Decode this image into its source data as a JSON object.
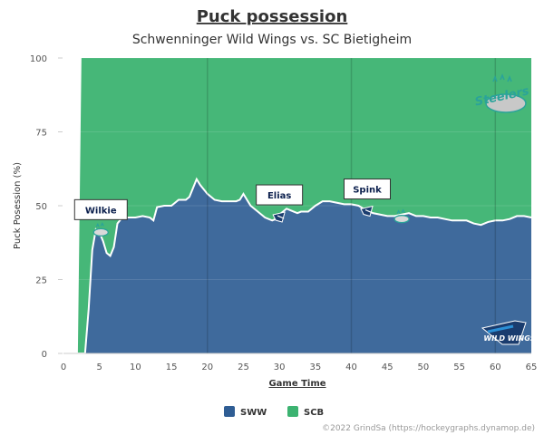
{
  "chart_data": {
    "type": "area",
    "title": "Puck possession",
    "subtitle": "Schwenninger Wild Wings vs. SC Bietigheim",
    "xlabel": "Game Time",
    "ylabel": "Puck Posession (%)",
    "xlim": [
      0,
      65
    ],
    "ylim": [
      0,
      100
    ],
    "x_ticks": [
      0,
      5,
      10,
      15,
      20,
      25,
      30,
      35,
      40,
      45,
      50,
      55,
      60,
      65
    ],
    "y_ticks": [
      0,
      25,
      50,
      75,
      100
    ],
    "grid": true,
    "legend_position": "bottom",
    "stacked_percent": true,
    "period_lines": [
      20,
      40,
      60
    ],
    "series": [
      {
        "name": "SWW",
        "color": "#2f5d94",
        "x": [
          1.3,
          2.0,
          3.0,
          3.5,
          4.0,
          4.5,
          5.0,
          5.5,
          6.0,
          6.5,
          7.0,
          7.5,
          8.0,
          9.0,
          10.0,
          11.0,
          12.0,
          12.5,
          13.0,
          14.0,
          15.0,
          16.0,
          17.0,
          17.5,
          18.0,
          18.5,
          19.0,
          20.0,
          21.0,
          22.0,
          23.0,
          24.0,
          24.5,
          25.0,
          25.5,
          26.0,
          27.0,
          28.0,
          29.0,
          29.5,
          30.0,
          30.5,
          31.0,
          31.5,
          32.0,
          32.5,
          33.0,
          34.0,
          35.0,
          36.0,
          37.0,
          38.0,
          39.0,
          40.0,
          41.0,
          42.0,
          43.0,
          44.0,
          45.0,
          46.0,
          47.0,
          48.0,
          49.0,
          50.0,
          51.0,
          52.0,
          53.0,
          54.0,
          55.0,
          56.0,
          57.0,
          58.0,
          59.0,
          60.0,
          61.0,
          62.0,
          63.0,
          64.0,
          65.0
        ],
        "values": [
          0,
          0,
          0,
          15,
          35,
          42,
          41,
          38,
          34,
          33,
          36,
          44,
          45.5,
          46,
          46,
          46.5,
          46,
          45,
          49.5,
          50,
          50,
          52,
          52,
          53,
          56,
          59,
          57,
          54,
          52,
          51.5,
          51.5,
          51.5,
          52,
          54,
          52,
          50,
          48,
          46,
          45,
          45.5,
          47,
          48,
          49,
          48.5,
          48,
          47.5,
          48,
          48,
          50,
          51.5,
          51.5,
          51,
          50.5,
          50.5,
          50,
          48.5,
          47.5,
          47,
          46.5,
          46.5,
          47,
          47.5,
          46.5,
          46.5,
          46,
          46,
          45.5,
          45,
          45,
          45,
          44,
          43.5,
          44.5,
          45,
          45,
          45.5,
          46.5,
          46.5,
          46
        ]
      },
      {
        "name": "SCB",
        "color": "#3cb371",
        "note": "complement of SWW up to 100% after puck drop"
      }
    ],
    "annotations": [
      {
        "label": "Wilkie",
        "x": 5.2,
        "y": 41,
        "team": "SCB"
      },
      {
        "label": "Elias",
        "x": 30.0,
        "y": 46,
        "team": "SWW"
      },
      {
        "label": "Spink",
        "x": 42.2,
        "y": 48,
        "team": "SWW"
      },
      {
        "label": "",
        "x": 47.0,
        "y": 45.5,
        "team": "SCB"
      }
    ],
    "credit": "©2022 GrindSa (https://hockeygraphs.dynamop.de)",
    "logos": {
      "scb": {
        "name": "steelers-logo",
        "text": "Steelers"
      },
      "sww": {
        "name": "wild-wings-logo",
        "text": "WILD WINGS"
      }
    }
  }
}
